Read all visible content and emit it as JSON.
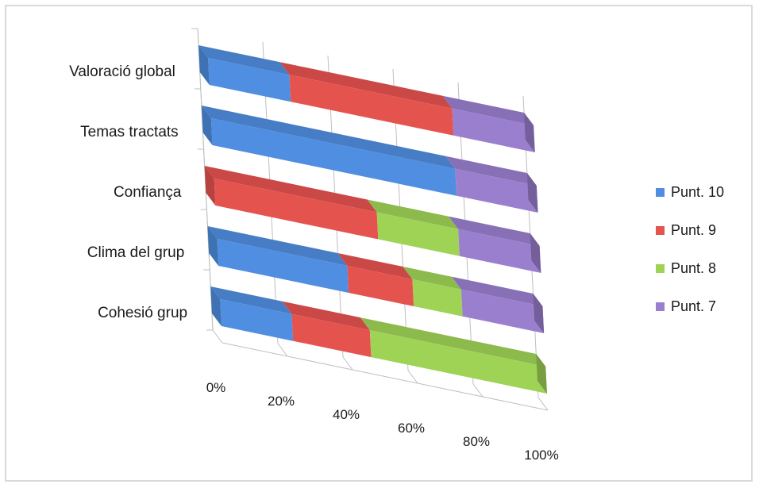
{
  "chart_data": {
    "type": "bar",
    "orientation": "horizontal",
    "stacked": "percent",
    "three_d": true,
    "categories": [
      "Valoració global",
      "Temas tractats",
      "Confiança",
      "Clima del grup",
      "Cohesió grup"
    ],
    "series": [
      {
        "name": "Punt. 10",
        "color": "#4f8ee0",
        "values": [
          25,
          75,
          0,
          40,
          22
        ]
      },
      {
        "name": "Punt. 9",
        "color": "#e5534f",
        "values": [
          50,
          0,
          50,
          20,
          24
        ]
      },
      {
        "name": "Punt. 8",
        "color": "#9fd356",
        "values": [
          0,
          0,
          25,
          15,
          54
        ]
      },
      {
        "name": "Punt. 7",
        "color": "#9b7fcf",
        "values": [
          25,
          25,
          25,
          25,
          0
        ]
      }
    ],
    "x_ticks": [
      "0%",
      "20%",
      "40%",
      "60%",
      "80%",
      "100%"
    ],
    "xlim": [
      0,
      100
    ],
    "legend_position": "right",
    "grid": true
  }
}
